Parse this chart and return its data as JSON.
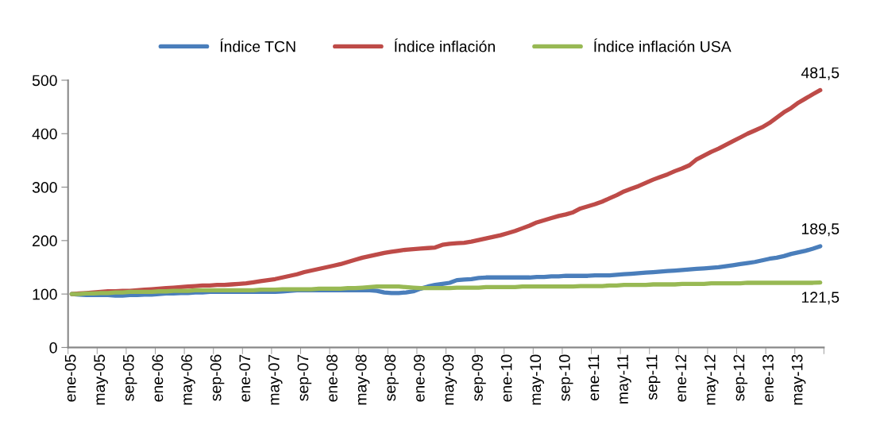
{
  "chart_data": {
    "type": "line",
    "categories": [
      "ene-05",
      null,
      null,
      null,
      "may-05",
      null,
      null,
      null,
      "sep-05",
      null,
      null,
      null,
      "ene-06",
      null,
      null,
      null,
      "may-06",
      null,
      null,
      null,
      "sep-06",
      null,
      null,
      null,
      "ene-07",
      null,
      null,
      null,
      "may-07",
      null,
      null,
      null,
      "sep-07",
      null,
      null,
      null,
      "ene-08",
      null,
      null,
      null,
      "may-08",
      null,
      null,
      null,
      "sep-08",
      null,
      null,
      null,
      "ene-09",
      null,
      null,
      null,
      "may-09",
      null,
      null,
      null,
      "sep-09",
      null,
      null,
      null,
      "ene-10",
      null,
      null,
      null,
      "may-10",
      null,
      null,
      null,
      "sep-10",
      null,
      null,
      null,
      "ene-11",
      null,
      null,
      null,
      "may-11",
      null,
      null,
      null,
      "sep-11",
      null,
      null,
      null,
      "ene-12",
      null,
      null,
      null,
      "may-12",
      null,
      null,
      null,
      "sep-12",
      null,
      null,
      null,
      "ene-13",
      null,
      null,
      null,
      "may-13",
      null,
      null,
      null
    ],
    "series": [
      {
        "name": "Índice TCN",
        "color": "#4a7ebb",
        "values": [
          100,
          99,
          98,
          98,
          98,
          98,
          97,
          97,
          98,
          98,
          99,
          99,
          100,
          101,
          101,
          102,
          102,
          103,
          103,
          104,
          104,
          104,
          104,
          104,
          104,
          104,
          104,
          104,
          104,
          105,
          106,
          107,
          107,
          107,
          107,
          107,
          107,
          107,
          107,
          107,
          107,
          107,
          106,
          103,
          102,
          102,
          103,
          105,
          110,
          114,
          117,
          119,
          121,
          126,
          127,
          128,
          130,
          131,
          131,
          131,
          131,
          131,
          131,
          131,
          132,
          132,
          133,
          133,
          134,
          134,
          134,
          134,
          135,
          135,
          135,
          136,
          137,
          138,
          139,
          140,
          141,
          142,
          143,
          144,
          145,
          146,
          147,
          148,
          149,
          150,
          152,
          154,
          156,
          158,
          160,
          163,
          166,
          168,
          171,
          175,
          178,
          181,
          185,
          189.5
        ],
        "value_labels": [
          null,
          null,
          null,
          null,
          null,
          null,
          null,
          null,
          null,
          null,
          null,
          null,
          null,
          null,
          null,
          null,
          null,
          null,
          null,
          null,
          null,
          null,
          null,
          null,
          null,
          null,
          null,
          null,
          null,
          null,
          null,
          null,
          null,
          null,
          null,
          null,
          null,
          null,
          null,
          null,
          null,
          null,
          null,
          null,
          null,
          null,
          null,
          null,
          null,
          null,
          null,
          null,
          null,
          null,
          null,
          null,
          null,
          null,
          null,
          null,
          null,
          null,
          null,
          null,
          null,
          null,
          null,
          null,
          null,
          null,
          null,
          null,
          null,
          null,
          null,
          null,
          null,
          null,
          null,
          null,
          null,
          null,
          null,
          null,
          null,
          null,
          null,
          null,
          null,
          null,
          null,
          null,
          null,
          null,
          null,
          null,
          null,
          null,
          null,
          null,
          null,
          null,
          null,
          "189,5"
        ]
      },
      {
        "name": "Índice inflación",
        "color": "#be4b48",
        "values": [
          100,
          101,
          102,
          103,
          104,
          105,
          105,
          106,
          106,
          107,
          108,
          109,
          110,
          111,
          112,
          113,
          114,
          115,
          116,
          116,
          117,
          117,
          118,
          119,
          120,
          122,
          124,
          126,
          128,
          131,
          134,
          137,
          141,
          144,
          147,
          150,
          153,
          156,
          160,
          164,
          168,
          171,
          174,
          177,
          179,
          181,
          183,
          184,
          185,
          186,
          187,
          192,
          194,
          195,
          196,
          198,
          201,
          204,
          207,
          210,
          214,
          218,
          223,
          228,
          234,
          238,
          242,
          246,
          249,
          253,
          260,
          264,
          268,
          273,
          279,
          285,
          292,
          297,
          302,
          308,
          314,
          319,
          324,
          330,
          335,
          341,
          352,
          359,
          366,
          372,
          379,
          386,
          393,
          400,
          406,
          412,
          420,
          430,
          440,
          448,
          458,
          466,
          474,
          481.5
        ],
        "value_labels": [
          null,
          null,
          null,
          null,
          null,
          null,
          null,
          null,
          null,
          null,
          null,
          null,
          null,
          null,
          null,
          null,
          null,
          null,
          null,
          null,
          null,
          null,
          null,
          null,
          null,
          null,
          null,
          null,
          null,
          null,
          null,
          null,
          null,
          null,
          null,
          null,
          null,
          null,
          null,
          null,
          null,
          null,
          null,
          null,
          null,
          null,
          null,
          null,
          null,
          null,
          null,
          null,
          null,
          null,
          null,
          null,
          null,
          null,
          null,
          null,
          null,
          null,
          null,
          null,
          null,
          null,
          null,
          null,
          null,
          null,
          null,
          null,
          null,
          null,
          null,
          null,
          null,
          null,
          null,
          null,
          null,
          null,
          null,
          null,
          null,
          null,
          null,
          null,
          null,
          null,
          null,
          null,
          null,
          null,
          null,
          null,
          null,
          null,
          null,
          null,
          null,
          null,
          null,
          "481,5"
        ]
      },
      {
        "name": "Índice inflación USA",
        "color": "#98b954",
        "values": [
          100,
          100,
          101,
          101,
          102,
          102,
          103,
          103,
          104,
          104,
          104,
          104,
          105,
          105,
          106,
          106,
          106,
          107,
          107,
          107,
          107,
          107,
          107,
          107,
          107,
          107,
          108,
          108,
          108,
          109,
          109,
          109,
          109,
          109,
          110,
          110,
          110,
          110,
          111,
          111,
          112,
          113,
          114,
          114,
          114,
          114,
          113,
          112,
          111,
          111,
          111,
          111,
          111,
          112,
          112,
          112,
          112,
          113,
          113,
          113,
          113,
          113,
          114,
          114,
          114,
          114,
          114,
          114,
          114,
          114,
          115,
          115,
          115,
          115,
          116,
          116,
          117,
          117,
          117,
          117,
          118,
          118,
          118,
          118,
          119,
          119,
          119,
          119,
          120,
          120,
          120,
          120,
          120,
          121,
          121,
          121,
          121,
          121,
          121,
          121,
          121,
          121,
          121,
          121.5
        ],
        "value_labels": [
          null,
          null,
          null,
          null,
          null,
          null,
          null,
          null,
          null,
          null,
          null,
          null,
          null,
          null,
          null,
          null,
          null,
          null,
          null,
          null,
          null,
          null,
          null,
          null,
          null,
          null,
          null,
          null,
          null,
          null,
          null,
          null,
          null,
          null,
          null,
          null,
          null,
          null,
          null,
          null,
          null,
          null,
          null,
          null,
          null,
          null,
          null,
          null,
          null,
          null,
          null,
          null,
          null,
          null,
          null,
          null,
          null,
          null,
          null,
          null,
          null,
          null,
          null,
          null,
          null,
          null,
          null,
          null,
          null,
          null,
          null,
          null,
          null,
          null,
          null,
          null,
          null,
          null,
          null,
          null,
          null,
          null,
          null,
          null,
          null,
          null,
          null,
          null,
          null,
          null,
          null,
          null,
          null,
          null,
          null,
          null,
          null,
          null,
          null,
          null,
          null,
          null,
          null,
          "121,5"
        ]
      }
    ],
    "ylim": [
      0,
      500
    ],
    "yticks": [
      0,
      100,
      200,
      300,
      400,
      500
    ],
    "grid": false,
    "legend": "top",
    "marker": "none",
    "line_style": "solid"
  }
}
